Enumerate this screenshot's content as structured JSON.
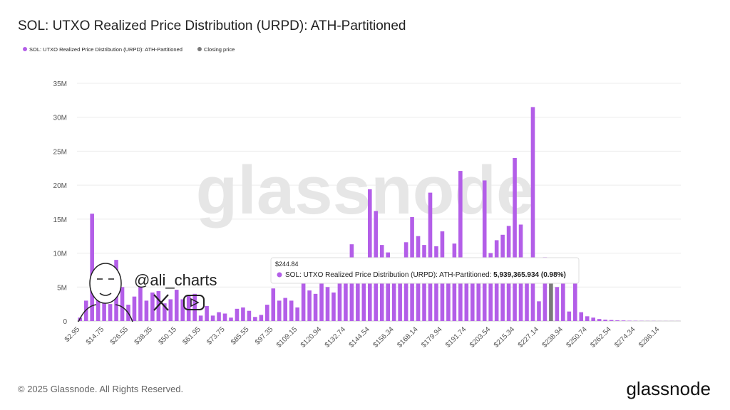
{
  "chart_data": {
    "type": "bar",
    "title": "SOL: UTXO Realized Price Distribution (URPD): ATH-Partitioned",
    "categories": [
      "$2.95",
      null,
      null,
      null,
      "$14.75",
      null,
      null,
      null,
      "$26.55",
      null,
      null,
      null,
      "$38.35",
      null,
      null,
      null,
      "$50.15",
      null,
      null,
      null,
      "$61.95",
      null,
      null,
      null,
      "$73.75",
      null,
      null,
      null,
      "$85.55",
      null,
      null,
      null,
      "$97.35",
      null,
      null,
      null,
      "$109.15",
      null,
      null,
      null,
      "$120.94",
      null,
      null,
      null,
      "$132.74",
      null,
      null,
      null,
      "$144.54",
      null,
      null,
      null,
      "$156.34",
      null,
      null,
      null,
      "$168.14",
      null,
      null,
      null,
      "$179.94",
      null,
      null,
      null,
      "$191.74",
      null,
      null,
      null,
      "$203.54",
      null,
      null,
      null,
      "$215.34",
      null,
      null,
      null,
      "$227.14",
      null,
      null,
      null,
      "$238.94",
      null,
      null,
      null,
      "$250.74",
      null,
      null,
      null,
      "$262.54",
      null,
      null,
      null,
      "$274.34",
      null,
      null,
      null,
      "$286.14",
      null,
      null,
      null
    ],
    "series": [
      {
        "name": "SOL: UTXO Realized Price Distribution (URPD): ATH-Partitioned",
        "color": "#b35ee8",
        "values": [
          500000,
          3000000,
          15800000,
          4000000,
          3000000,
          2500000,
          9000000,
          5000000,
          2400000,
          3600000,
          5000000,
          3000000,
          4200000,
          4400000,
          2600000,
          3200000,
          4600000,
          3200000,
          3800000,
          4000000,
          800000,
          2200000,
          800000,
          1300000,
          1100000,
          500000,
          1800000,
          2000000,
          1500000,
          600000,
          900000,
          2400000,
          4800000,
          3000000,
          3400000,
          3000000,
          2000000,
          6000000,
          4500000,
          4000000,
          6500000,
          5000000,
          4200000,
          6000000,
          6000000,
          11300000,
          7000000,
          7000000,
          19400000,
          16200000,
          11200000,
          10100000,
          8000000,
          8000000,
          11600000,
          15300000,
          12500000,
          11200000,
          18900000,
          11000000,
          13200000,
          9000000,
          11400000,
          22100000,
          8000000,
          7000000,
          7000000,
          20700000,
          10000000,
          11900000,
          12700000,
          14000000,
          24000000,
          14200000,
          9000000,
          31500000,
          2900000,
          9400000,
          null,
          5000000,
          6000000,
          1400000,
          6000000,
          1300000,
          700000,
          500000,
          300000,
          200000,
          150000,
          100000,
          80000,
          50000,
          40000,
          30000,
          20000,
          20000,
          10000,
          10000,
          10000,
          10000
        ]
      },
      {
        "name": "Closing price",
        "color": "#7a7a7a",
        "values": [
          null,
          null,
          null,
          null,
          null,
          null,
          null,
          null,
          null,
          null,
          null,
          null,
          null,
          null,
          null,
          null,
          null,
          null,
          null,
          null,
          null,
          null,
          null,
          null,
          null,
          null,
          null,
          null,
          null,
          null,
          null,
          null,
          null,
          null,
          null,
          null,
          null,
          null,
          null,
          null,
          null,
          null,
          null,
          null,
          null,
          null,
          null,
          null,
          null,
          null,
          null,
          null,
          null,
          null,
          null,
          null,
          null,
          null,
          null,
          null,
          null,
          null,
          null,
          null,
          null,
          null,
          null,
          null,
          null,
          null,
          null,
          null,
          null,
          null,
          null,
          null,
          null,
          null,
          5939365.934,
          null,
          null,
          null,
          null,
          null,
          null,
          null,
          null,
          null,
          null,
          null,
          null,
          null,
          null,
          null,
          null,
          null,
          null,
          null,
          null,
          null
        ]
      }
    ],
    "ylim": [
      0,
      35000000
    ],
    "yticks": [
      0,
      {
        "value": 5000000,
        "label": "5M"
      },
      {
        "value": 10000000,
        "label": "10M"
      },
      {
        "value": 15000000,
        "label": "15M"
      },
      {
        "value": 20000000,
        "label": "20M"
      },
      {
        "value": 25000000,
        "label": "25M"
      },
      {
        "value": 30000000,
        "label": "30M"
      },
      {
        "value": 35000000,
        "label": "35M"
      }
    ],
    "grid": true,
    "legend": "top-left",
    "tooltip": {
      "header": "$244.84",
      "label": "SOL: UTXO Realized Price Distribution (URPD): ATH-Partitioned:",
      "value": "5,939,365.934 (0.98%)"
    },
    "watermark": "glassnode",
    "overlay_handle": "@ali_charts",
    "footer": "© 2025 Glassnode. All Rights Reserved.",
    "logo": "glassnode"
  }
}
